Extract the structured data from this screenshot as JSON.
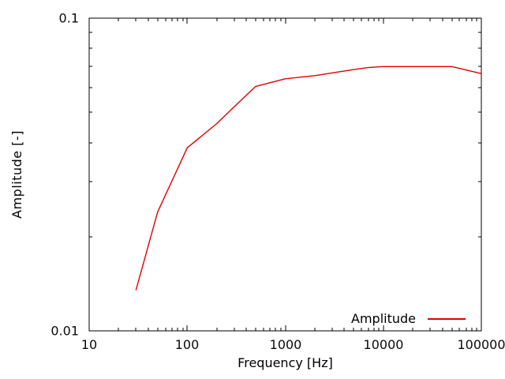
{
  "figure": {
    "background": "#ffffff",
    "text_color": "#0a0a0a",
    "axis_color": "#000000",
    "line_color": "#e00000"
  },
  "chart_data": {
    "type": "line",
    "title": "",
    "xlabel": "Frequency [Hz]",
    "ylabel": "Amplitude [-]",
    "x_scale": "log",
    "y_scale": "log",
    "xlim": [
      10,
      100000
    ],
    "ylim": [
      0.01,
      0.1
    ],
    "x_ticks": [
      10,
      100,
      1000,
      10000,
      100000
    ],
    "x_tick_labels": [
      "10",
      "100",
      "1000",
      "10000",
      "100000"
    ],
    "y_ticks": [
      0.01,
      0.1
    ],
    "y_tick_labels": [
      "0.01",
      "0.1"
    ],
    "grid": "off",
    "legend": {
      "position": "inside-bottom-right",
      "entries": [
        "Amplitude"
      ]
    },
    "series": [
      {
        "name": "Amplitude",
        "color": "#e00000",
        "x": [
          30,
          50,
          100,
          200,
          300,
          500,
          1000,
          2000,
          5000,
          7000,
          10000,
          20000,
          50000,
          100000
        ],
        "y": [
          0.0135,
          0.024,
          0.0385,
          0.046,
          0.052,
          0.0605,
          0.064,
          0.0655,
          0.0685,
          0.0695,
          0.07,
          0.07,
          0.07,
          0.0665
        ]
      }
    ]
  }
}
